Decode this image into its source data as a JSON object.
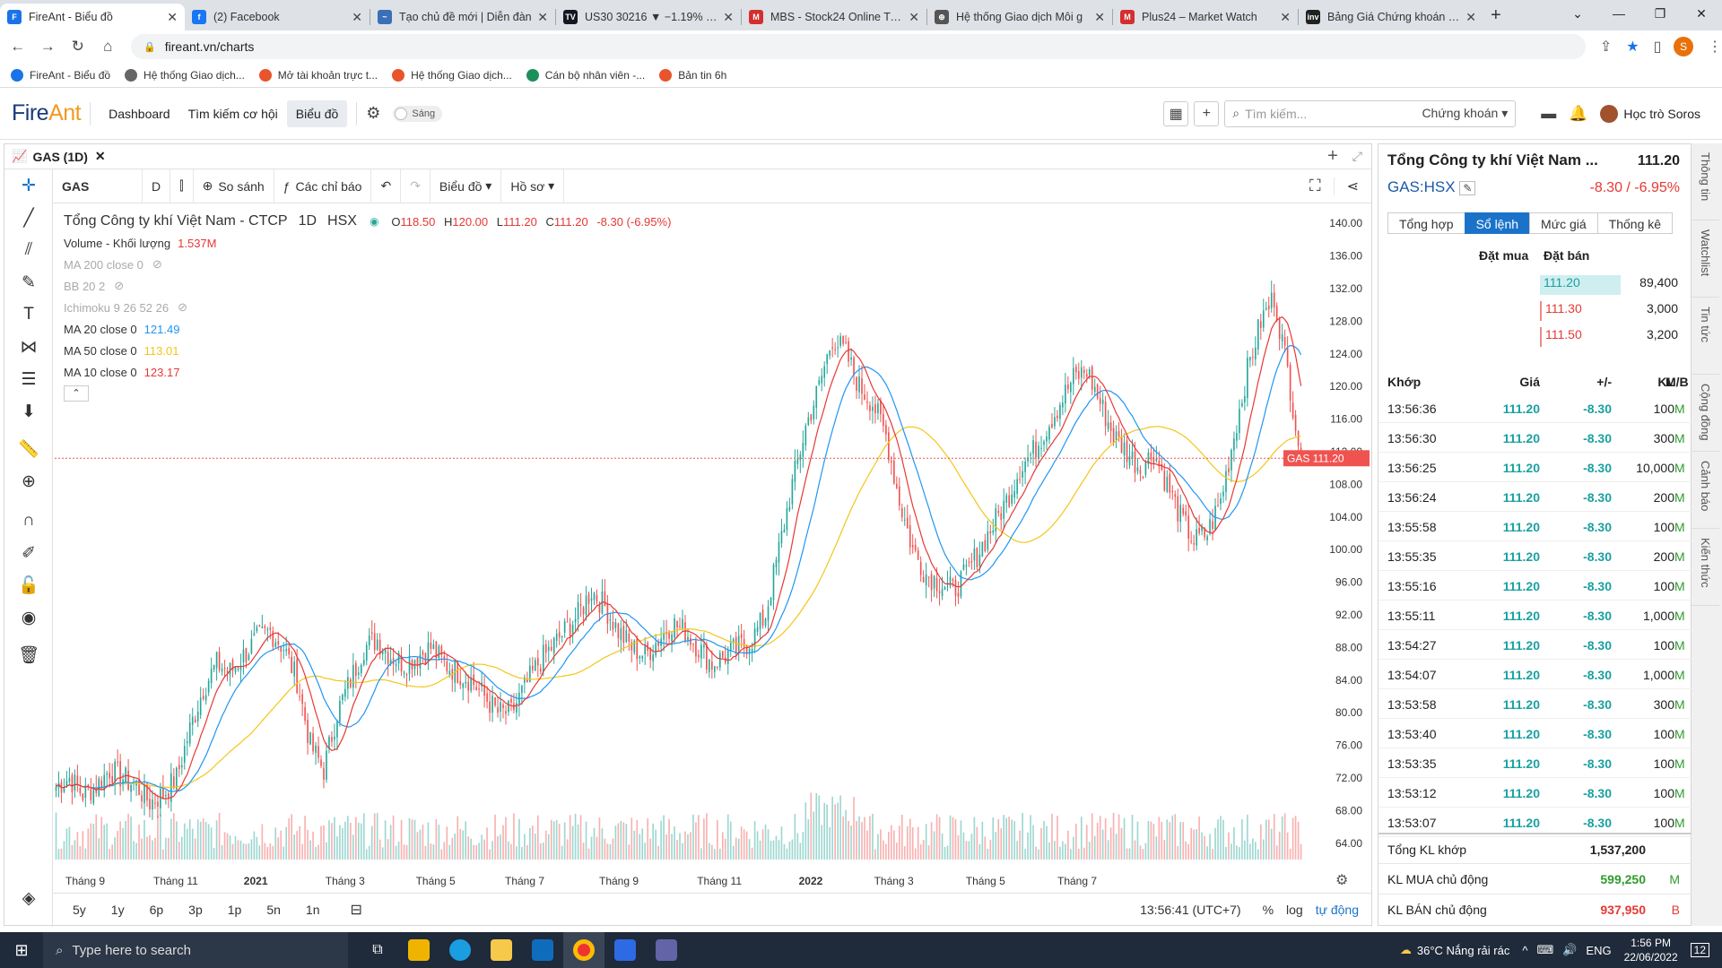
{
  "browser": {
    "tabs": [
      {
        "title": "FireAnt - Biểu đồ",
        "icon": "F",
        "color": "#1a73e8",
        "active": true
      },
      {
        "title": "(2) Facebook",
        "icon": "f",
        "color": "#1877f2"
      },
      {
        "title": "Tạo chủ đề mới | Diễn đàn",
        "icon": "~",
        "color": "#3b6fb6"
      },
      {
        "title": "US30 30216 ▼ −1.19% Un",
        "icon": "TV",
        "color": "#131722"
      },
      {
        "title": "MBS - Stock24 Online Trad",
        "icon": "M",
        "color": "#d32f2f"
      },
      {
        "title": "Hệ thống Giao dịch Môi g",
        "icon": "⊕",
        "color": "#555555"
      },
      {
        "title": "Plus24 – Market Watch",
        "icon": "M",
        "color": "#d32f2f"
      },
      {
        "title": "Bảng Giá Chứng khoán Th",
        "icon": "inv",
        "color": "#222222"
      }
    ],
    "new_tab": "+",
    "url": "fireant.vn/charts",
    "profile_initial": "S",
    "bookmarks": [
      {
        "label": "FireAnt - Biểu đồ",
        "color": "#1a73e8"
      },
      {
        "label": "Hệ thống Giao dịch...",
        "color": "#666666"
      },
      {
        "label": "Mở tài khoản trực t...",
        "color": "#e8542b"
      },
      {
        "label": "Hệ thống Giao dịch...",
        "color": "#e8542b"
      },
      {
        "label": "Cán bộ nhân viên -...",
        "color": "#1e8e5a"
      },
      {
        "label": "Bản tin 6h",
        "color": "#e8542b"
      }
    ]
  },
  "app": {
    "logo_a": "Fire",
    "logo_b": "Ant",
    "nav": [
      "Dashboard",
      "Tìm kiếm cơ hội",
      "Biểu đồ"
    ],
    "theme_label": "Sáng",
    "search_placeholder": "Tìm kiếm...",
    "search_scope": "Chứng khoán",
    "user_name": "Học trò Soros"
  },
  "chart_panel": {
    "tab_title": "GAS (1D)",
    "symbol_input": "GAS",
    "interval": "D",
    "compare": "So sánh",
    "indicators": "Các chỉ báo",
    "chart_type": "Biểu đồ",
    "profile": "Hồ sơ",
    "legend": {
      "name": "Tổng Công ty khí Việt Nam - CTCP",
      "interval": "1D",
      "exchange": "HSX",
      "o_label": "O",
      "o": "118.50",
      "h_label": "H",
      "h": "120.00",
      "l_label": "L",
      "l": "111.20",
      "c_label": "C",
      "c": "111.20",
      "change": "-8.30 (-6.95%)",
      "volume_label": "Volume - Khối lượng",
      "volume_value": "1.537M",
      "ma200": "MA 200 close 0",
      "bb": "BB 20 2",
      "ichimoku": "Ichimoku 9 26 52 26",
      "ma20_label": "MA 20 close 0",
      "ma20_value": "121.49",
      "ma50_label": "MA 50 close 0",
      "ma50_value": "113.01",
      "ma10_label": "MA 10 close 0",
      "ma10_value": "123.17"
    },
    "timeframes": [
      "5y",
      "1y",
      "6p",
      "3p",
      "1p",
      "5n",
      "1n"
    ],
    "clock": "13:56:41 (UTC+7)",
    "pct": "%",
    "log": "log",
    "auto": "tự động",
    "price_tag_label": "GAS",
    "price_tag_value": "111.20",
    "colors": {
      "up": "#26a69a",
      "down": "#ef5350",
      "ma10": "#e53935",
      "ma20": "#2196f3",
      "ma50": "#f5c518"
    }
  },
  "chart_data": {
    "type": "candlestick",
    "y_ticks": [
      "140.00",
      "136.00",
      "132.00",
      "128.00",
      "124.00",
      "120.00",
      "116.00",
      "112.00",
      "108.00",
      "104.00",
      "100.00",
      "96.00",
      "92.00",
      "88.00",
      "84.00",
      "80.00",
      "76.00",
      "72.00",
      "68.00",
      "64.00"
    ],
    "ylim": [
      62,
      142
    ],
    "x_labels": [
      "Tháng 9",
      "Tháng 11",
      "2021",
      "Tháng 3",
      "Tháng 5",
      "Tháng 7",
      "Tháng 9",
      "Tháng 11",
      "2022",
      "Tháng 3",
      "Tháng 5",
      "Tháng 7"
    ],
    "last_price": 111.2,
    "closes_weekly": [
      71,
      72,
      70,
      71,
      73,
      72,
      71,
      69,
      70,
      72,
      78,
      83,
      86,
      85,
      87,
      89,
      90,
      88,
      84,
      76,
      73,
      80,
      84,
      88,
      89,
      87,
      86,
      87,
      88,
      86,
      85,
      84,
      82,
      80,
      80,
      83,
      86,
      88,
      90,
      92,
      95,
      93,
      90,
      88,
      87,
      89,
      91,
      90,
      88,
      86,
      87,
      88,
      89,
      92,
      100,
      108,
      115,
      120,
      126,
      124,
      120,
      118,
      114,
      106,
      100,
      97,
      96,
      95,
      97,
      100,
      103,
      106,
      110,
      112,
      115,
      118,
      121,
      122,
      118,
      114,
      112,
      110,
      112,
      108,
      104,
      101,
      102,
      106,
      114,
      122,
      128,
      131,
      122,
      111.2
    ]
  },
  "right_panel": {
    "company": "Tổng Công ty khí Việt Nam ...",
    "price": "111.20",
    "ticker": "GAS:HSX",
    "change": "-8.30 / -6.95%",
    "tabs": [
      "Tổng hợp",
      "Sổ lệnh",
      "Mức giá",
      "Thống kê"
    ],
    "bid_header": "Đặt mua",
    "ask_header": "Đặt bán",
    "asks": [
      {
        "price": "111.20",
        "vol": "89,400"
      },
      {
        "price": "111.30",
        "vol": "3,000"
      },
      {
        "price": "111.50",
        "vol": "3,200"
      }
    ],
    "match_headers": [
      "Khớp",
      "Giá",
      "+/-",
      "KL",
      "M/B"
    ],
    "matches": [
      {
        "t": "13:56:36",
        "p": "111.20",
        "c": "-8.30",
        "v": "100",
        "s": "M"
      },
      {
        "t": "13:56:30",
        "p": "111.20",
        "c": "-8.30",
        "v": "300",
        "s": "M"
      },
      {
        "t": "13:56:25",
        "p": "111.20",
        "c": "-8.30",
        "v": "10,000",
        "s": "M"
      },
      {
        "t": "13:56:24",
        "p": "111.20",
        "c": "-8.30",
        "v": "200",
        "s": "M"
      },
      {
        "t": "13:55:58",
        "p": "111.20",
        "c": "-8.30",
        "v": "100",
        "s": "M"
      },
      {
        "t": "13:55:35",
        "p": "111.20",
        "c": "-8.30",
        "v": "200",
        "s": "M"
      },
      {
        "t": "13:55:16",
        "p": "111.20",
        "c": "-8.30",
        "v": "100",
        "s": "M"
      },
      {
        "t": "13:55:11",
        "p": "111.20",
        "c": "-8.30",
        "v": "1,000",
        "s": "M"
      },
      {
        "t": "13:54:27",
        "p": "111.20",
        "c": "-8.30",
        "v": "100",
        "s": "M"
      },
      {
        "t": "13:54:07",
        "p": "111.20",
        "c": "-8.30",
        "v": "1,000",
        "s": "M"
      },
      {
        "t": "13:53:58",
        "p": "111.20",
        "c": "-8.30",
        "v": "300",
        "s": "M"
      },
      {
        "t": "13:53:40",
        "p": "111.20",
        "c": "-8.30",
        "v": "100",
        "s": "M"
      },
      {
        "t": "13:53:35",
        "p": "111.20",
        "c": "-8.30",
        "v": "100",
        "s": "M"
      },
      {
        "t": "13:53:12",
        "p": "111.20",
        "c": "-8.30",
        "v": "100",
        "s": "M"
      },
      {
        "t": "13:53:07",
        "p": "111.20",
        "c": "-8.30",
        "v": "100",
        "s": "M"
      }
    ],
    "total_label": "Tổng KL khớp",
    "total_value": "1,537,200",
    "buy_label": "KL MUA chủ động",
    "buy_value": "599,250",
    "buy_flag": "M",
    "sell_label": "KL BÁN chủ động",
    "sell_value": "937,950",
    "sell_flag": "B",
    "side_tabs": [
      "Thông tin",
      "Watchlist",
      "Tin tức",
      "Cộng đồng",
      "Cảnh báo",
      "Kiến thức"
    ]
  },
  "taskbar": {
    "search": "Type here to search",
    "weather": "36°C  Nắng rải rác",
    "lang": "ENG",
    "time": "1:56 PM",
    "date": "22/06/2022",
    "notif": "12"
  }
}
